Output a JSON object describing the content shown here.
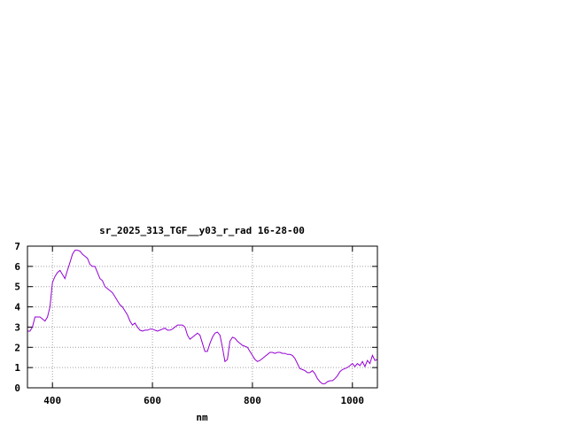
{
  "chart_data": {
    "type": "line",
    "title": "sr_2025_313_TGF__y03_r_rad 16-28-00",
    "xlabel": "nm",
    "ylabel": "",
    "xlim": [
      350,
      1050
    ],
    "ylim": [
      0,
      7
    ],
    "xticks": [
      400,
      600,
      800,
      1000
    ],
    "yticks": [
      0,
      1,
      2,
      3,
      4,
      5,
      6,
      7
    ],
    "grid": true,
    "line_color": "#9400d3",
    "series": [
      {
        "x": [
          350,
          355,
          360,
          365,
          370,
          375,
          380,
          385,
          390,
          395,
          400,
          405,
          410,
          415,
          420,
          425,
          430,
          435,
          440,
          445,
          450,
          455,
          460,
          465,
          470,
          475,
          480,
          485,
          490,
          495,
          500,
          505,
          510,
          515,
          520,
          525,
          530,
          535,
          540,
          545,
          550,
          555,
          560,
          565,
          570,
          575,
          580,
          585,
          590,
          595,
          600,
          605,
          610,
          615,
          620,
          625,
          630,
          635,
          640,
          645,
          650,
          655,
          660,
          665,
          670,
          675,
          680,
          685,
          690,
          695,
          700,
          705,
          710,
          715,
          720,
          725,
          730,
          735,
          740,
          745,
          750,
          755,
          760,
          765,
          770,
          775,
          780,
          785,
          790,
          795,
          800,
          805,
          810,
          815,
          820,
          825,
          830,
          835,
          840,
          845,
          850,
          855,
          860,
          865,
          870,
          875,
          880,
          885,
          890,
          895,
          900,
          905,
          910,
          915,
          920,
          925,
          930,
          935,
          940,
          945,
          950,
          955,
          960,
          965,
          970,
          975,
          980,
          985,
          990,
          995,
          1000,
          1005,
          1010,
          1015,
          1020,
          1025,
          1030,
          1035,
          1040,
          1045,
          1050
        ],
        "y": [
          2.8,
          2.8,
          3.0,
          3.5,
          3.5,
          3.5,
          3.4,
          3.3,
          3.5,
          4.0,
          5.2,
          5.5,
          5.7,
          5.8,
          5.6,
          5.4,
          5.8,
          6.2,
          6.6,
          6.8,
          6.8,
          6.75,
          6.6,
          6.5,
          6.4,
          6.1,
          6.0,
          6.0,
          5.7,
          5.4,
          5.3,
          5.0,
          4.9,
          4.8,
          4.7,
          4.5,
          4.3,
          4.1,
          4.0,
          3.8,
          3.6,
          3.3,
          3.1,
          3.2,
          3.0,
          2.85,
          2.8,
          2.85,
          2.85,
          2.9,
          2.9,
          2.85,
          2.8,
          2.85,
          2.9,
          2.95,
          2.85,
          2.85,
          2.9,
          3.0,
          3.1,
          3.1,
          3.1,
          3.0,
          2.6,
          2.4,
          2.5,
          2.6,
          2.7,
          2.6,
          2.2,
          1.8,
          1.8,
          2.2,
          2.5,
          2.7,
          2.75,
          2.6,
          2.0,
          1.3,
          1.4,
          2.3,
          2.5,
          2.45,
          2.3,
          2.2,
          2.1,
          2.05,
          2.0,
          1.8,
          1.6,
          1.4,
          1.3,
          1.35,
          1.45,
          1.55,
          1.65,
          1.75,
          1.75,
          1.7,
          1.75,
          1.75,
          1.7,
          1.7,
          1.65,
          1.65,
          1.6,
          1.45,
          1.2,
          0.95,
          0.9,
          0.85,
          0.75,
          0.75,
          0.85,
          0.7,
          0.45,
          0.3,
          0.2,
          0.2,
          0.3,
          0.35,
          0.35,
          0.45,
          0.6,
          0.8,
          0.9,
          0.95,
          1.0,
          1.1,
          1.2,
          1.05,
          1.2,
          1.1,
          1.3,
          1.05,
          1.35,
          1.2,
          1.6,
          1.35,
          1.4
        ]
      }
    ]
  }
}
